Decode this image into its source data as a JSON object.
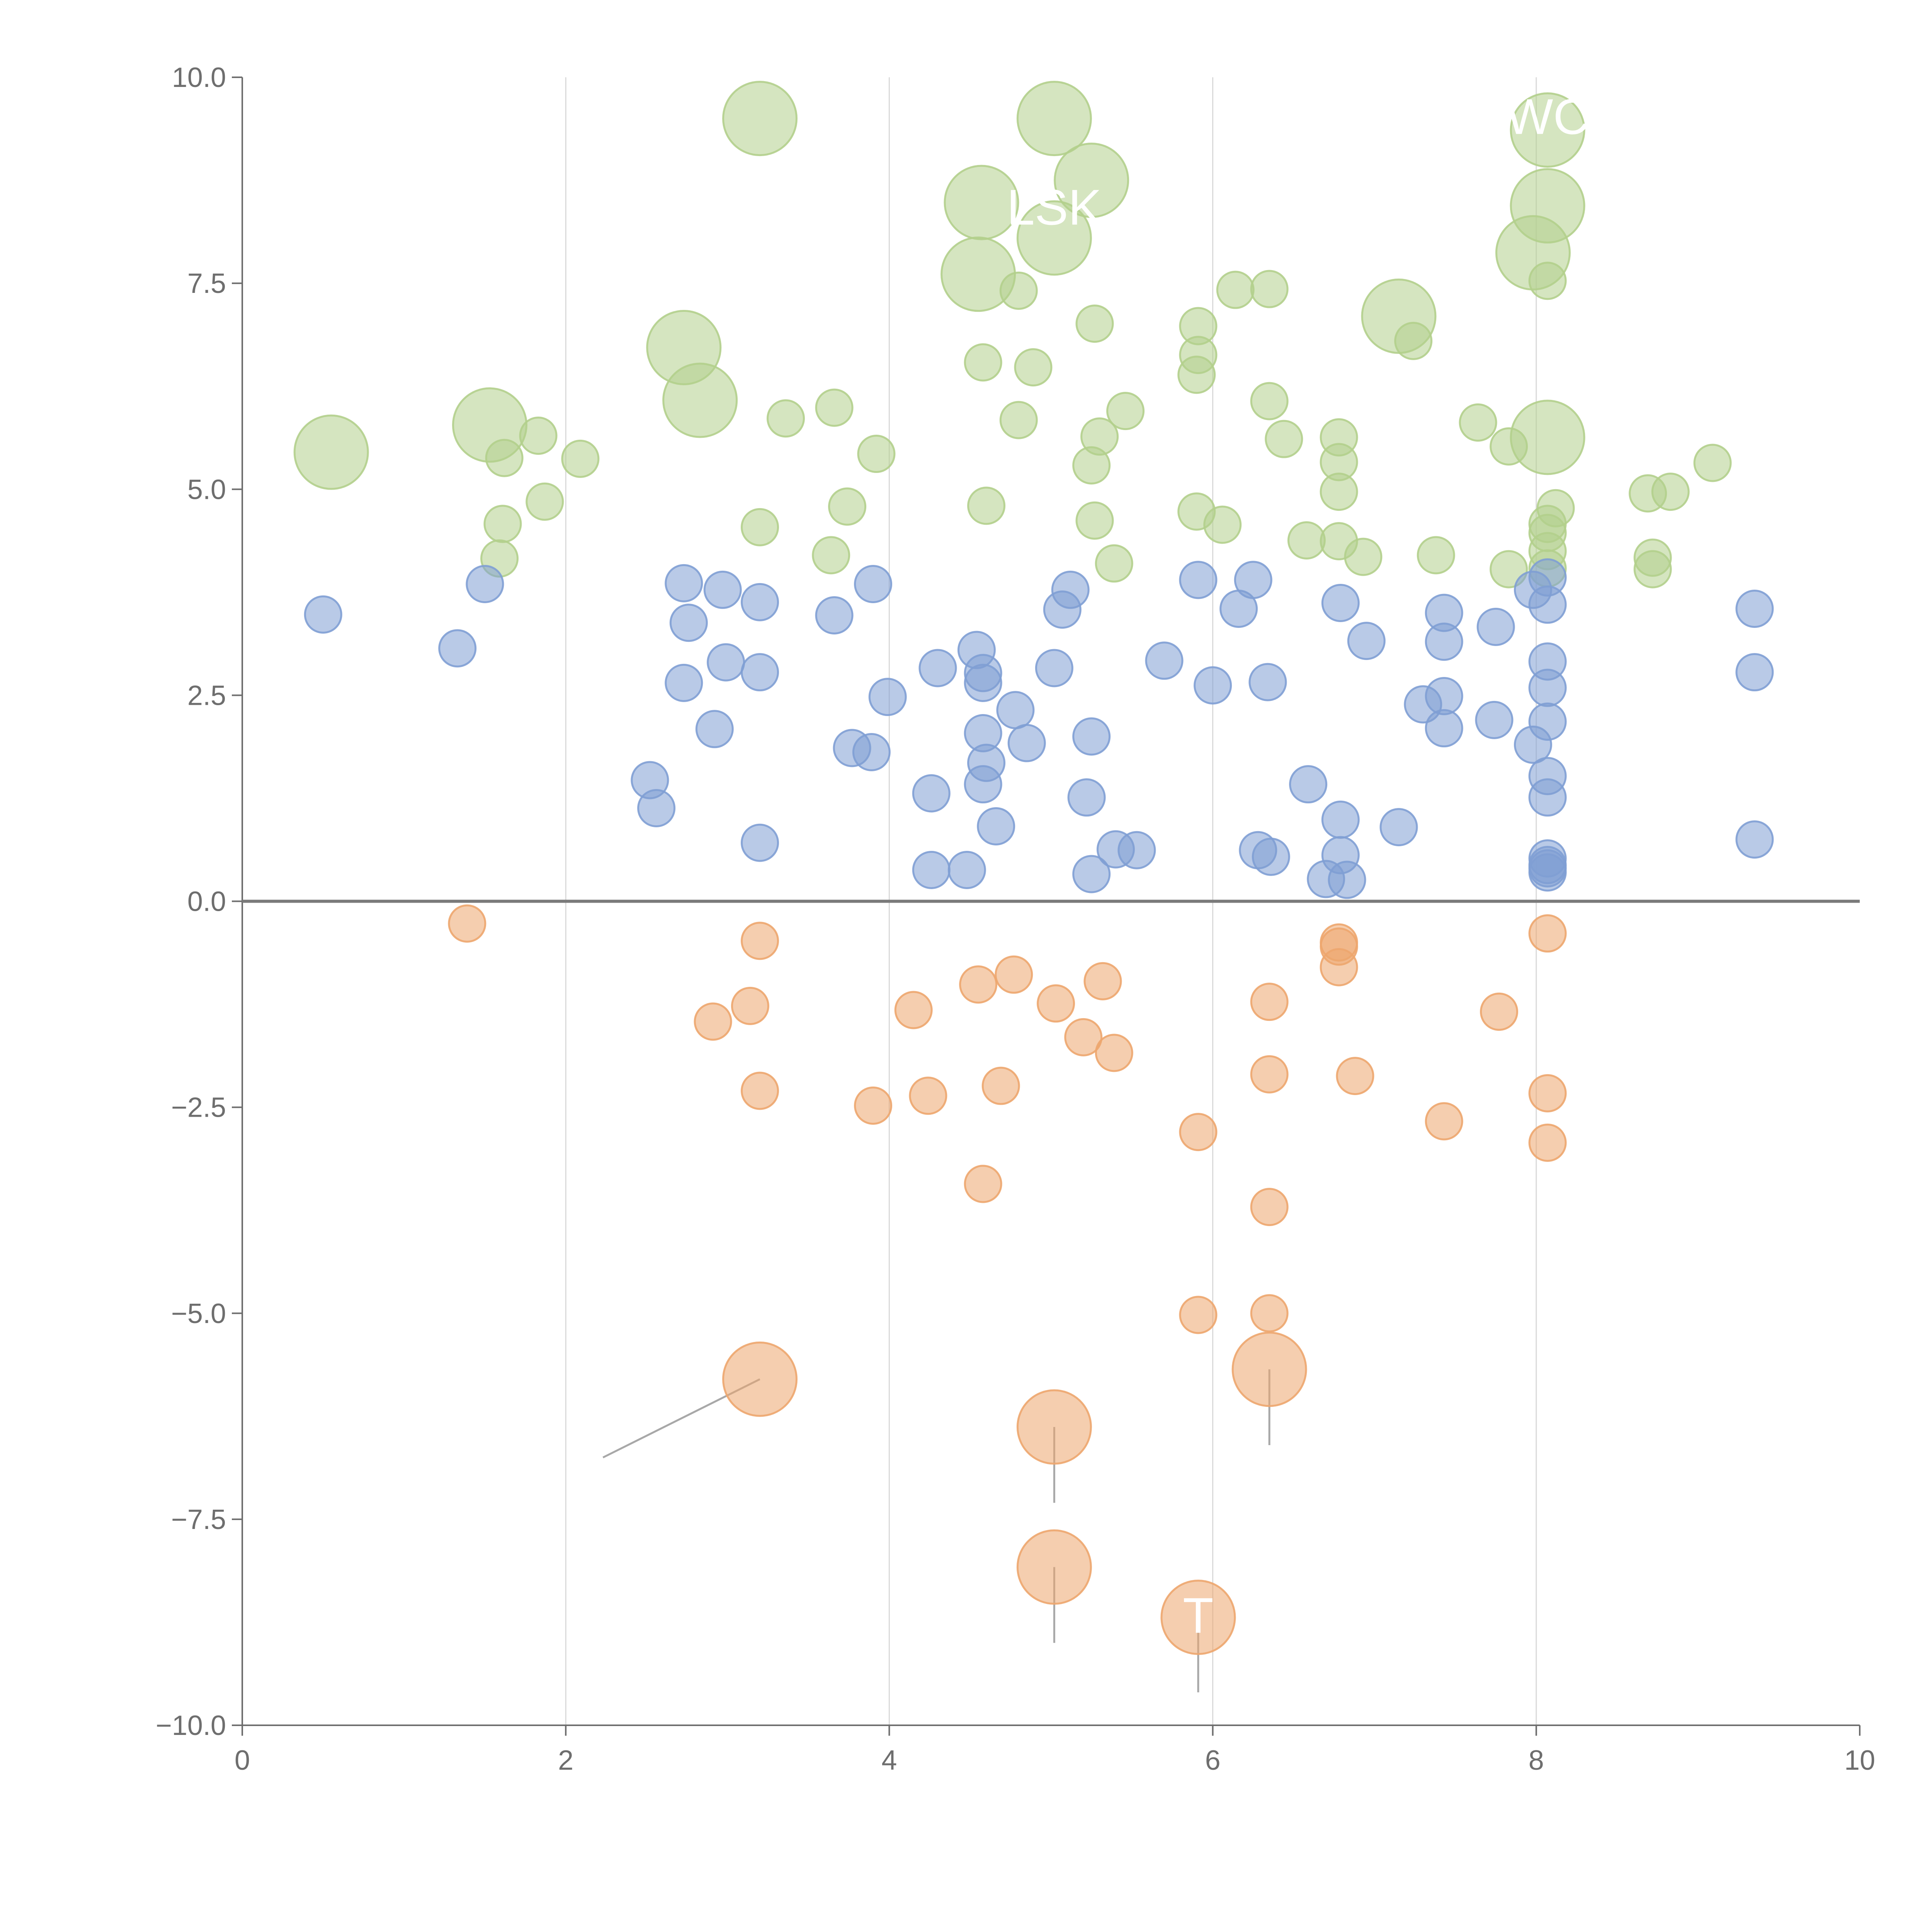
{
  "chart_data": {
    "type": "scatter",
    "title": "",
    "xlabel": "",
    "ylabel": "",
    "xlim": [
      0,
      10
    ],
    "ylim": [
      -10,
      10
    ],
    "x_ticks": [
      0,
      2,
      4,
      6,
      8,
      10
    ],
    "x_tick_labels": [
      "0",
      "2",
      "4",
      "6",
      "8",
      "10"
    ],
    "y_ticks": [
      -10,
      -7.5,
      -5,
      -2.5,
      0,
      2.5,
      5,
      7.5,
      10
    ],
    "y_tick_labels": [
      "−10.0",
      "−7.5",
      "−5.0",
      "−2.5",
      "0.0",
      "2.5",
      "5.0",
      "7.5",
      "10.0"
    ],
    "vertical_gridlines_at": [
      2,
      4,
      6,
      8
    ],
    "zero_line": 0,
    "colors": {
      "green": "#b3cf8c",
      "blue": "#7f9fd4",
      "orange": "#eda66e",
      "axis": "#6e6e6e",
      "grid": "#d9d9d9",
      "zero": "#7a7a7a",
      "leader": "#a8a8a8"
    },
    "series": [
      {
        "name": "green",
        "color": "#b3cf8c",
        "points": [
          {
            "x": 0.55,
            "y": 5.45,
            "s": 2
          },
          {
            "x": 1.53,
            "y": 5.78,
            "s": 2
          },
          {
            "x": 1.62,
            "y": 5.38,
            "s": 1
          },
          {
            "x": 1.83,
            "y": 5.65,
            "s": 1
          },
          {
            "x": 2.09,
            "y": 5.37,
            "s": 1
          },
          {
            "x": 1.61,
            "y": 4.58,
            "s": 1
          },
          {
            "x": 1.59,
            "y": 4.16,
            "s": 1
          },
          {
            "x": 1.87,
            "y": 4.85,
            "s": 1
          },
          {
            "x": 2.73,
            "y": 6.72,
            "s": 2
          },
          {
            "x": 2.83,
            "y": 6.08,
            "s": 2
          },
          {
            "x": 3.2,
            "y": 9.5,
            "s": 2
          },
          {
            "x": 3.36,
            "y": 5.86,
            "s": 1
          },
          {
            "x": 3.66,
            "y": 5.99,
            "s": 1
          },
          {
            "x": 3.2,
            "y": 4.54,
            "s": 1
          },
          {
            "x": 3.64,
            "y": 4.2,
            "s": 1
          },
          {
            "x": 3.74,
            "y": 4.79,
            "s": 1
          },
          {
            "x": 3.92,
            "y": 5.43,
            "s": 1
          },
          {
            "x": 4.55,
            "y": 7.61,
            "s": 2
          },
          {
            "x": 4.57,
            "y": 8.48,
            "s": 2
          },
          {
            "x": 4.8,
            "y": 7.41,
            "s": 1
          },
          {
            "x": 4.58,
            "y": 6.54,
            "s": 1
          },
          {
            "x": 4.89,
            "y": 6.48,
            "s": 1
          },
          {
            "x": 4.8,
            "y": 5.84,
            "s": 1
          },
          {
            "x": 4.6,
            "y": 4.8,
            "s": 1
          },
          {
            "x": 5.02,
            "y": 9.5,
            "s": 2
          },
          {
            "x": 5.25,
            "y": 8.75,
            "s": 2
          },
          {
            "x": 5.02,
            "y": 8.05,
            "s": 2
          },
          {
            "x": 5.27,
            "y": 7.01,
            "s": 1
          },
          {
            "x": 5.3,
            "y": 5.64,
            "s": 1
          },
          {
            "x": 5.25,
            "y": 5.29,
            "s": 1
          },
          {
            "x": 5.46,
            "y": 5.95,
            "s": 1
          },
          {
            "x": 5.27,
            "y": 4.62,
            "s": 1
          },
          {
            "x": 5.39,
            "y": 4.1,
            "s": 1
          },
          {
            "x": 5.91,
            "y": 6.98,
            "s": 1
          },
          {
            "x": 5.91,
            "y": 6.63,
            "s": 1
          },
          {
            "x": 5.9,
            "y": 6.39,
            "s": 1
          },
          {
            "x": 5.9,
            "y": 4.73,
            "s": 1
          },
          {
            "x": 6.06,
            "y": 4.57,
            "s": 1
          },
          {
            "x": 6.14,
            "y": 7.42,
            "s": 1
          },
          {
            "x": 6.35,
            "y": 7.43,
            "s": 1
          },
          {
            "x": 6.35,
            "y": 6.07,
            "s": 1
          },
          {
            "x": 6.44,
            "y": 5.61,
            "s": 1
          },
          {
            "x": 6.58,
            "y": 4.38,
            "s": 1
          },
          {
            "x": 6.78,
            "y": 5.63,
            "s": 1
          },
          {
            "x": 6.78,
            "y": 5.33,
            "s": 1
          },
          {
            "x": 6.78,
            "y": 4.97,
            "s": 1
          },
          {
            "x": 6.78,
            "y": 4.37,
            "s": 1
          },
          {
            "x": 6.93,
            "y": 4.18,
            "s": 1
          },
          {
            "x": 7.15,
            "y": 7.1,
            "s": 2
          },
          {
            "x": 7.24,
            "y": 6.8,
            "s": 1
          },
          {
            "x": 7.64,
            "y": 5.81,
            "s": 1
          },
          {
            "x": 7.83,
            "y": 5.52,
            "s": 1
          },
          {
            "x": 7.38,
            "y": 4.2,
            "s": 1
          },
          {
            "x": 7.83,
            "y": 4.03,
            "s": 1
          },
          {
            "x": 8.07,
            "y": 9.36,
            "s": 2
          },
          {
            "x": 8.07,
            "y": 8.44,
            "s": 2
          },
          {
            "x": 7.98,
            "y": 7.87,
            "s": 2
          },
          {
            "x": 8.07,
            "y": 7.53,
            "s": 1
          },
          {
            "x": 8.07,
            "y": 5.63,
            "s": 2
          },
          {
            "x": 8.12,
            "y": 4.77,
            "s": 1
          },
          {
            "x": 8.07,
            "y": 4.58,
            "s": 1
          },
          {
            "x": 8.07,
            "y": 4.47,
            "s": 1
          },
          {
            "x": 8.07,
            "y": 4.25,
            "s": 1
          },
          {
            "x": 8.07,
            "y": 4.04,
            "s": 1
          },
          {
            "x": 8.69,
            "y": 4.95,
            "s": 1
          },
          {
            "x": 8.83,
            "y": 4.97,
            "s": 1
          },
          {
            "x": 8.72,
            "y": 4.17,
            "s": 1
          },
          {
            "x": 8.72,
            "y": 4.03,
            "s": 1
          },
          {
            "x": 9.09,
            "y": 5.32,
            "s": 1
          }
        ]
      },
      {
        "name": "blue",
        "color": "#7f9fd4",
        "points": [
          {
            "x": 0.5,
            "y": 3.48,
            "s": 1
          },
          {
            "x": 1.33,
            "y": 3.07,
            "s": 1
          },
          {
            "x": 1.5,
            "y": 3.85,
            "s": 1
          },
          {
            "x": 2.52,
            "y": 1.47,
            "s": 1
          },
          {
            "x": 2.56,
            "y": 1.13,
            "s": 1
          },
          {
            "x": 2.73,
            "y": 3.86,
            "s": 1
          },
          {
            "x": 2.76,
            "y": 3.38,
            "s": 1
          },
          {
            "x": 2.73,
            "y": 2.65,
            "s": 1
          },
          {
            "x": 2.92,
            "y": 2.09,
            "s": 1
          },
          {
            "x": 2.97,
            "y": 3.78,
            "s": 1
          },
          {
            "x": 2.99,
            "y": 2.9,
            "s": 1
          },
          {
            "x": 3.2,
            "y": 3.63,
            "s": 1
          },
          {
            "x": 3.2,
            "y": 2.78,
            "s": 1
          },
          {
            "x": 3.2,
            "y": 0.71,
            "s": 1
          },
          {
            "x": 3.66,
            "y": 3.47,
            "s": 1
          },
          {
            "x": 3.77,
            "y": 1.86,
            "s": 1
          },
          {
            "x": 3.89,
            "y": 1.81,
            "s": 1
          },
          {
            "x": 3.9,
            "y": 3.85,
            "s": 1
          },
          {
            "x": 3.99,
            "y": 2.48,
            "s": 1
          },
          {
            "x": 4.26,
            "y": 1.31,
            "s": 1
          },
          {
            "x": 4.26,
            "y": 0.38,
            "s": 1
          },
          {
            "x": 4.3,
            "y": 2.83,
            "s": 1
          },
          {
            "x": 4.48,
            "y": 0.38,
            "s": 1
          },
          {
            "x": 4.54,
            "y": 3.05,
            "s": 1
          },
          {
            "x": 4.58,
            "y": 2.77,
            "s": 1
          },
          {
            "x": 4.58,
            "y": 2.65,
            "s": 1
          },
          {
            "x": 4.58,
            "y": 2.04,
            "s": 1
          },
          {
            "x": 4.6,
            "y": 1.68,
            "s": 1
          },
          {
            "x": 4.58,
            "y": 1.42,
            "s": 1
          },
          {
            "x": 4.66,
            "y": 0.91,
            "s": 1
          },
          {
            "x": 4.78,
            "y": 2.32,
            "s": 1
          },
          {
            "x": 4.85,
            "y": 1.92,
            "s": 1
          },
          {
            "x": 5.02,
            "y": 2.83,
            "s": 1
          },
          {
            "x": 5.12,
            "y": 3.78,
            "s": 1
          },
          {
            "x": 5.07,
            "y": 3.54,
            "s": 1
          },
          {
            "x": 5.25,
            "y": 2.0,
            "s": 1
          },
          {
            "x": 5.22,
            "y": 1.26,
            "s": 1
          },
          {
            "x": 5.25,
            "y": 0.33,
            "s": 1
          },
          {
            "x": 5.4,
            "y": 0.63,
            "s": 1
          },
          {
            "x": 5.53,
            "y": 0.62,
            "s": 1
          },
          {
            "x": 5.7,
            "y": 2.92,
            "s": 1
          },
          {
            "x": 5.91,
            "y": 3.9,
            "s": 1
          },
          {
            "x": 6.0,
            "y": 2.62,
            "s": 1
          },
          {
            "x": 6.16,
            "y": 3.55,
            "s": 1
          },
          {
            "x": 6.25,
            "y": 3.9,
            "s": 1
          },
          {
            "x": 6.34,
            "y": 2.66,
            "s": 1
          },
          {
            "x": 6.28,
            "y": 0.62,
            "s": 1
          },
          {
            "x": 6.36,
            "y": 0.54,
            "s": 1
          },
          {
            "x": 6.59,
            "y": 1.42,
            "s": 1
          },
          {
            "x": 6.7,
            "y": 0.27,
            "s": 1
          },
          {
            "x": 6.79,
            "y": 3.62,
            "s": 1
          },
          {
            "x": 6.79,
            "y": 0.99,
            "s": 1
          },
          {
            "x": 6.79,
            "y": 0.56,
            "s": 1
          },
          {
            "x": 6.83,
            "y": 0.26,
            "s": 1
          },
          {
            "x": 6.95,
            "y": 3.16,
            "s": 1
          },
          {
            "x": 7.15,
            "y": 0.9,
            "s": 1
          },
          {
            "x": 7.3,
            "y": 2.39,
            "s": 1
          },
          {
            "x": 7.43,
            "y": 3.5,
            "s": 1
          },
          {
            "x": 7.43,
            "y": 3.15,
            "s": 1
          },
          {
            "x": 7.43,
            "y": 2.49,
            "s": 1
          },
          {
            "x": 7.43,
            "y": 2.1,
            "s": 1
          },
          {
            "x": 7.75,
            "y": 3.33,
            "s": 1
          },
          {
            "x": 7.74,
            "y": 2.2,
            "s": 1
          },
          {
            "x": 7.98,
            "y": 3.78,
            "s": 1
          },
          {
            "x": 7.98,
            "y": 1.9,
            "s": 1
          },
          {
            "x": 8.07,
            "y": 3.93,
            "s": 1
          },
          {
            "x": 8.07,
            "y": 3.6,
            "s": 1
          },
          {
            "x": 8.07,
            "y": 2.91,
            "s": 1
          },
          {
            "x": 8.07,
            "y": 2.59,
            "s": 1
          },
          {
            "x": 8.07,
            "y": 2.18,
            "s": 1
          },
          {
            "x": 8.07,
            "y": 1.52,
            "s": 1
          },
          {
            "x": 8.07,
            "y": 1.26,
            "s": 1
          },
          {
            "x": 8.07,
            "y": 0.52,
            "s": 1
          },
          {
            "x": 8.07,
            "y": 0.44,
            "s": 1
          },
          {
            "x": 8.07,
            "y": 0.4,
            "s": 1
          },
          {
            "x": 8.07,
            "y": 0.35,
            "s": 1
          },
          {
            "x": 9.35,
            "y": 3.55,
            "s": 1
          },
          {
            "x": 9.35,
            "y": 2.78,
            "s": 1
          },
          {
            "x": 9.35,
            "y": 0.75,
            "s": 1
          }
        ]
      },
      {
        "name": "orange",
        "color": "#eda66e",
        "points": [
          {
            "x": 1.39,
            "y": -0.27,
            "s": 1
          },
          {
            "x": 2.91,
            "y": -1.46,
            "s": 1
          },
          {
            "x": 3.14,
            "y": -1.27,
            "s": 1
          },
          {
            "x": 3.2,
            "y": -0.48,
            "s": 1
          },
          {
            "x": 3.2,
            "y": -2.3,
            "s": 1
          },
          {
            "x": 3.2,
            "y": -5.8,
            "s": 2
          },
          {
            "x": 3.9,
            "y": -2.48,
            "s": 1
          },
          {
            "x": 4.15,
            "y": -1.32,
            "s": 1
          },
          {
            "x": 4.24,
            "y": -2.36,
            "s": 1
          },
          {
            "x": 4.55,
            "y": -1.01,
            "s": 1
          },
          {
            "x": 4.58,
            "y": -3.43,
            "s": 1
          },
          {
            "x": 4.69,
            "y": -2.24,
            "s": 1
          },
          {
            "x": 4.77,
            "y": -0.89,
            "s": 1
          },
          {
            "x": 5.03,
            "y": -1.24,
            "s": 1
          },
          {
            "x": 5.2,
            "y": -1.65,
            "s": 1
          },
          {
            "x": 5.32,
            "y": -0.97,
            "s": 1
          },
          {
            "x": 5.39,
            "y": -1.84,
            "s": 1
          },
          {
            "x": 5.02,
            "y": -6.38,
            "s": 2
          },
          {
            "x": 5.02,
            "y": -8.08,
            "s": 2
          },
          {
            "x": 5.91,
            "y": -2.8,
            "s": 1
          },
          {
            "x": 5.91,
            "y": -5.02,
            "s": 1
          },
          {
            "x": 5.91,
            "y": -8.69,
            "s": 2
          },
          {
            "x": 6.35,
            "y": -1.22,
            "s": 1
          },
          {
            "x": 6.35,
            "y": -2.1,
            "s": 1
          },
          {
            "x": 6.35,
            "y": -3.71,
            "s": 1
          },
          {
            "x": 6.35,
            "y": -5.0,
            "s": 1
          },
          {
            "x": 6.35,
            "y": -5.68,
            "s": 2
          },
          {
            "x": 6.78,
            "y": -0.5,
            "s": 1
          },
          {
            "x": 6.78,
            "y": -0.55,
            "s": 1
          },
          {
            "x": 6.78,
            "y": -0.8,
            "s": 1
          },
          {
            "x": 6.88,
            "y": -2.12,
            "s": 1
          },
          {
            "x": 7.43,
            "y": -2.67,
            "s": 1
          },
          {
            "x": 7.77,
            "y": -1.34,
            "s": 1
          },
          {
            "x": 8.07,
            "y": -0.39,
            "s": 1
          },
          {
            "x": 8.07,
            "y": -2.33,
            "s": 1
          },
          {
            "x": 8.07,
            "y": -2.93,
            "s": 1
          }
        ]
      }
    ],
    "leader_lines": [
      {
        "x1": 3.2,
        "y1": -5.8,
        "x2": 2.23,
        "y2": -6.75
      },
      {
        "x1": 5.02,
        "y1": -6.38,
        "x2": 5.02,
        "y2": -7.3
      },
      {
        "x1": 5.02,
        "y1": -8.08,
        "x2": 5.02,
        "y2": -9.0
      },
      {
        "x1": 5.91,
        "y1": -8.69,
        "x2": 5.91,
        "y2": -9.6
      },
      {
        "x1": 6.35,
        "y1": -5.68,
        "x2": 6.35,
        "y2": -6.6
      }
    ],
    "annotations": [
      {
        "text": "LSK",
        "x": 5.02,
        "y": 8.4
      },
      {
        "text": "T",
        "x": 5.91,
        "y": -8.69
      },
      {
        "text": "WC",
        "x": 8.07,
        "y": 9.5
      }
    ]
  }
}
